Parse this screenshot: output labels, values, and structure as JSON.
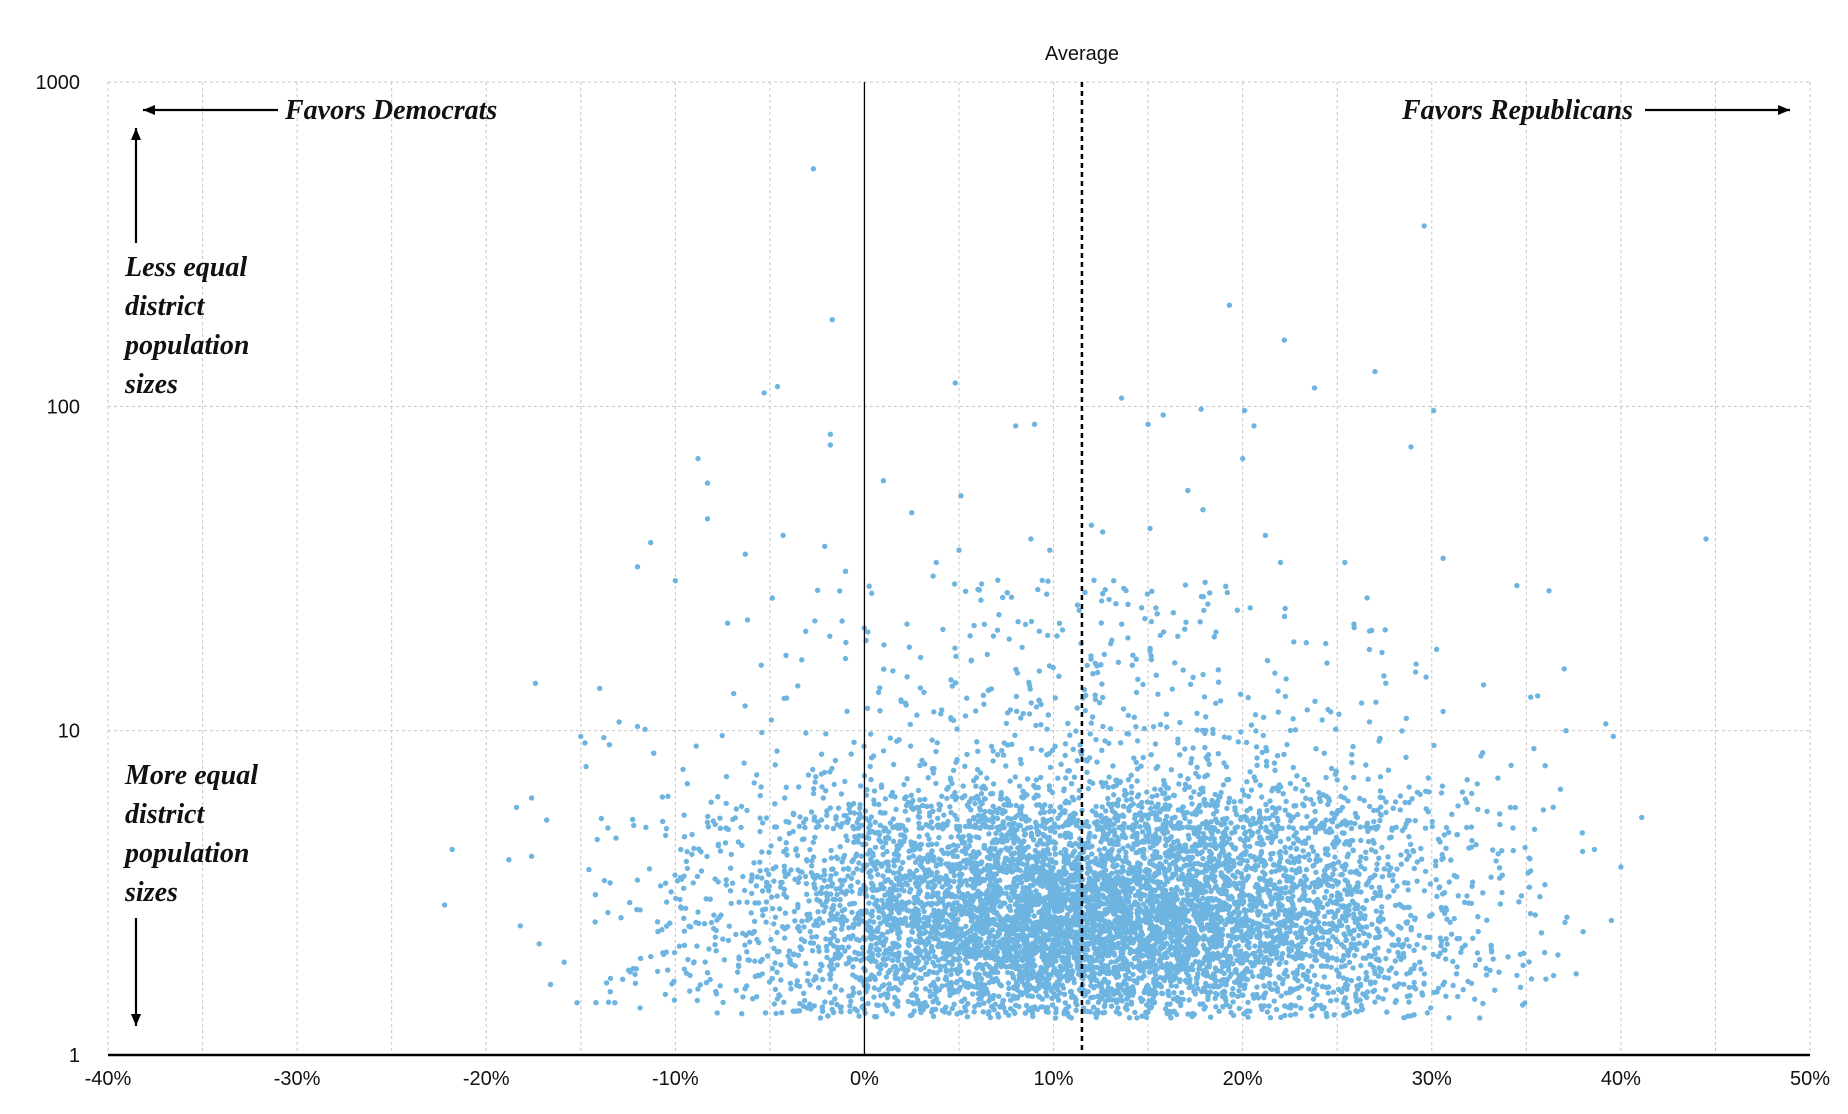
{
  "chart_data": {
    "type": "scatter",
    "title": "",
    "xlabel": "",
    "ylabel": "",
    "x_axis": {
      "min": -40,
      "max": 50,
      "step": 10,
      "unit": "%",
      "tick_labels": [
        "-40%",
        "-30%",
        "-20%",
        "-10%",
        "0%",
        "10%",
        "20%",
        "30%",
        "40%",
        "50%"
      ]
    },
    "y_axis": {
      "scale": "log",
      "min": 1,
      "max": 1000,
      "ticks": [
        1,
        10,
        100,
        1000
      ],
      "tick_labels": [
        "1",
        "10",
        "100",
        "1000"
      ]
    },
    "grid": true,
    "point_color": "#6eb4e0",
    "reference_lines": {
      "zero": {
        "x": 0
      },
      "average": {
        "x": 11.5,
        "label": "Average"
      }
    },
    "annotations": {
      "favors_dem": "Favors Democrats",
      "favors_rep": "Favors Republicans",
      "less_equal": [
        "Less equal",
        "district",
        "population",
        "sizes"
      ],
      "more_equal": [
        "More equal",
        "district",
        "population",
        "sizes"
      ]
    },
    "outliers": [
      {
        "x": -2.7,
        "y": 540
      },
      {
        "x": -1.7,
        "y": 185
      },
      {
        "x": -5.3,
        "y": 110
      },
      {
        "x": -4.6,
        "y": 115
      },
      {
        "x": -1.8,
        "y": 82
      },
      {
        "x": -1.8,
        "y": 76
      },
      {
        "x": -8.8,
        "y": 69
      },
      {
        "x": -8.3,
        "y": 58
      },
      {
        "x": -8.3,
        "y": 45
      },
      {
        "x": -4.3,
        "y": 40
      },
      {
        "x": -11.3,
        "y": 38
      },
      {
        "x": -6.3,
        "y": 35
      },
      {
        "x": -12.0,
        "y": 32
      },
      {
        "x": -2.1,
        "y": 37
      },
      {
        "x": -1.0,
        "y": 31
      },
      {
        "x": -10.0,
        "y": 29
      },
      {
        "x": 4.8,
        "y": 118
      },
      {
        "x": 8.0,
        "y": 87
      },
      {
        "x": 9.0,
        "y": 88
      },
      {
        "x": 1.0,
        "y": 59
      },
      {
        "x": 5.1,
        "y": 53
      },
      {
        "x": 2.5,
        "y": 47
      },
      {
        "x": 3.8,
        "y": 33
      },
      {
        "x": 5.0,
        "y": 36
      },
      {
        "x": 9.8,
        "y": 36
      },
      {
        "x": 8.8,
        "y": 39
      },
      {
        "x": 13.6,
        "y": 106
      },
      {
        "x": 15.0,
        "y": 88
      },
      {
        "x": 15.8,
        "y": 94
      },
      {
        "x": 17.8,
        "y": 98
      },
      {
        "x": 19.3,
        "y": 205
      },
      {
        "x": 22.2,
        "y": 160
      },
      {
        "x": 20.1,
        "y": 97
      },
      {
        "x": 20.6,
        "y": 87
      },
      {
        "x": 20.0,
        "y": 69
      },
      {
        "x": 23.8,
        "y": 114
      },
      {
        "x": 27.0,
        "y": 128
      },
      {
        "x": 29.6,
        "y": 360
      },
      {
        "x": 30.1,
        "y": 97
      },
      {
        "x": 28.9,
        "y": 75
      },
      {
        "x": 17.1,
        "y": 55
      },
      {
        "x": 17.9,
        "y": 48
      },
      {
        "x": 12.0,
        "y": 43
      },
      {
        "x": 12.6,
        "y": 41
      },
      {
        "x": 15.1,
        "y": 42
      },
      {
        "x": 21.2,
        "y": 40
      },
      {
        "x": 22.0,
        "y": 33
      },
      {
        "x": 25.4,
        "y": 33
      },
      {
        "x": 30.6,
        "y": 34
      },
      {
        "x": 34.5,
        "y": 28
      },
      {
        "x": 36.2,
        "y": 27
      },
      {
        "x": 44.5,
        "y": 39
      },
      {
        "x": 39.2,
        "y": 10.5
      },
      {
        "x": 39.6,
        "y": 9.6
      },
      {
        "x": 41.1,
        "y": 5.4
      },
      {
        "x": 40.0,
        "y": 3.8
      },
      {
        "x": 38.6,
        "y": 4.3
      },
      {
        "x": 38.0,
        "y": 2.4
      },
      {
        "x": 39.5,
        "y": 2.6
      },
      {
        "x": 36.8,
        "y": 6.6
      },
      {
        "x": 37.0,
        "y": 15.5
      },
      {
        "x": 37.1,
        "y": 10.0
      },
      {
        "x": 35.6,
        "y": 12.8
      },
      {
        "x": 36.0,
        "y": 7.8
      },
      {
        "x": -22.2,
        "y": 2.9
      },
      {
        "x": -21.8,
        "y": 4.3
      },
      {
        "x": -18.4,
        "y": 5.8
      },
      {
        "x": -17.6,
        "y": 6.2
      },
      {
        "x": -17.4,
        "y": 14.0
      },
      {
        "x": -16.8,
        "y": 5.3
      },
      {
        "x": -18.8,
        "y": 4.0
      },
      {
        "x": -15.2,
        "y": 1.45
      },
      {
        "x": -14.2,
        "y": 1.45
      },
      {
        "x": -13.2,
        "y": 1.45
      },
      {
        "x": -16.6,
        "y": 1.65
      },
      {
        "x": -14.0,
        "y": 13.5
      },
      {
        "x": -12.0,
        "y": 10.3
      },
      {
        "x": -11.6,
        "y": 10.1
      },
      {
        "x": -15.0,
        "y": 9.6
      },
      {
        "x": -17.6,
        "y": 4.1
      },
      {
        "x": -18.2,
        "y": 2.5
      },
      {
        "x": -17.2,
        "y": 2.2
      }
    ],
    "cluster": {
      "n_points": 7200,
      "x_center": 12,
      "x_spread": 9.5,
      "y_log_center": 0.42,
      "y_log_spread": 0.16,
      "x_min": -16,
      "x_max": 38,
      "y_min": 1.3,
      "y_max": 13,
      "secondary": {
        "n_points": 800,
        "y_min": 5,
        "y_max": 30
      }
    }
  }
}
